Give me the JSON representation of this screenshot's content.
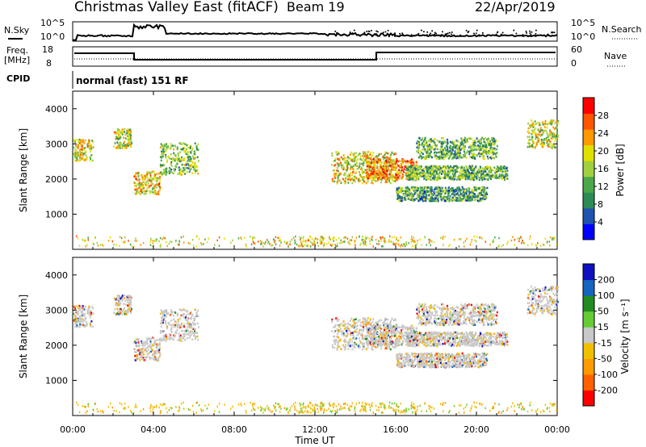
{
  "header": {
    "title": "Christmas Valley East (fitACF)",
    "beam": "Beam 19",
    "date": "22/Apr/2019"
  },
  "nsky_panel": {
    "left_label": "N.Sky",
    "right_label": "N.Search",
    "tick_top": "10^5",
    "tick_bottom": "10^0"
  },
  "freq_panel": {
    "left_label_1": "Freq.",
    "left_label_2": "[MHz]",
    "right_label": "Nave",
    "left_ticks": [
      "18",
      "8"
    ],
    "right_ticks": [
      "60",
      "0"
    ]
  },
  "cpid": {
    "label": "CPID",
    "mode": "normal (fast) 151 RF"
  },
  "colors": {
    "power": [
      "#0000ff",
      "#2050b0",
      "#2e8b57",
      "#4aa84a",
      "#a0d040",
      "#e0e000",
      "#ff9900",
      "#ff5500",
      "#ff0000"
    ],
    "velocity": [
      "#ff0000",
      "#ff6000",
      "#ff9a00",
      "#f0c000",
      "#c8c8c8",
      "#66cc33",
      "#228b22",
      "#1565c0",
      "#1010c0"
    ]
  },
  "chart_data": [
    {
      "type": "heatmap",
      "ylabel": "Slant Range [km]",
      "colorbar_label": "Power [dB]",
      "colorbar_ticks": [
        "4",
        "8",
        "12",
        "16",
        "20",
        "24",
        "28"
      ],
      "ylim": [
        0,
        4500
      ],
      "yticks": [
        "1000",
        "2000",
        "3000",
        "4000"
      ],
      "xlim": [
        0,
        24
      ],
      "scatter_regions": [
        {
          "t0": 0.0,
          "t1": 1.0,
          "r0": 2550,
          "r1": 3150,
          "level": 0.6
        },
        {
          "t0": 2.0,
          "t1": 2.9,
          "r0": 2900,
          "r1": 3450,
          "level": 0.55
        },
        {
          "t0": 3.0,
          "t1": 4.3,
          "r0": 1600,
          "r1": 2250,
          "level": 0.65
        },
        {
          "t0": 4.3,
          "t1": 6.2,
          "r0": 2150,
          "r1": 3050,
          "level": 0.45
        },
        {
          "t0": 12.8,
          "t1": 16.0,
          "r0": 1900,
          "r1": 2800,
          "level": 0.6
        },
        {
          "t0": 14.5,
          "t1": 17.0,
          "r0": 2000,
          "r1": 2600,
          "level": 0.75
        },
        {
          "t0": 16.5,
          "t1": 21.5,
          "r0": 2000,
          "r1": 2400,
          "level": 0.4
        },
        {
          "t0": 16.0,
          "t1": 20.5,
          "r0": 1400,
          "r1": 1800,
          "level": 0.35
        },
        {
          "t0": 17.0,
          "t1": 21.0,
          "r0": 2600,
          "r1": 3200,
          "level": 0.4
        },
        {
          "t0": 22.5,
          "t1": 24.0,
          "r0": 2900,
          "r1": 3700,
          "level": 0.55
        }
      ]
    },
    {
      "type": "heatmap",
      "xlabel": "Time UT",
      "ylabel": "Slant Range [km]",
      "colorbar_label": "Velocity [m s⁻¹]",
      "colorbar_ticks": [
        "-200",
        "-100",
        "-50",
        "-15",
        "15",
        "50",
        "100",
        "200"
      ],
      "ylim": [
        0,
        4500
      ],
      "yticks": [
        "1000",
        "2000",
        "3000",
        "4000"
      ],
      "xlim": [
        0,
        24
      ],
      "xticks": [
        "00:00",
        "04:00",
        "08:00",
        "12:00",
        "16:00",
        "20:00",
        "00:00"
      ]
    }
  ]
}
